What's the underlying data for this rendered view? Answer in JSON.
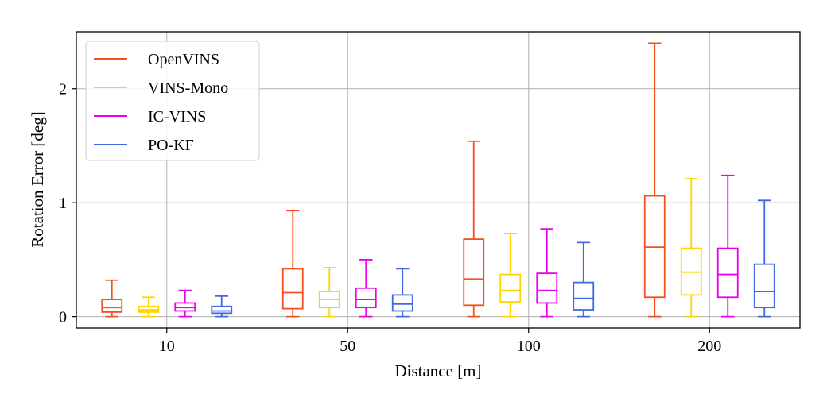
{
  "chart_data": {
    "type": "boxplot",
    "title": "",
    "xlabel": "Distance [m]",
    "ylabel": "Rotation Error [deg]",
    "categories": [
      "10",
      "50",
      "100",
      "200"
    ],
    "ylim": [
      -0.1,
      2.5
    ],
    "yticks": [
      0,
      1,
      2
    ],
    "grid": true,
    "legend_position": "top-left",
    "series": [
      {
        "name": "OpenVINS",
        "color": "#f4511e",
        "boxes": [
          {
            "min": 0.0,
            "q1": 0.04,
            "median": 0.08,
            "q3": 0.15,
            "max": 0.32
          },
          {
            "min": 0.0,
            "q1": 0.07,
            "median": 0.21,
            "q3": 0.42,
            "max": 0.93
          },
          {
            "min": 0.0,
            "q1": 0.1,
            "median": 0.33,
            "q3": 0.68,
            "max": 1.54
          },
          {
            "min": 0.0,
            "q1": 0.17,
            "median": 0.61,
            "q3": 1.06,
            "max": 2.4
          }
        ]
      },
      {
        "name": "VINS-Mono",
        "color": "#ffd500",
        "boxes": [
          {
            "min": 0.0,
            "q1": 0.04,
            "median": 0.06,
            "q3": 0.09,
            "max": 0.17
          },
          {
            "min": 0.0,
            "q1": 0.08,
            "median": 0.15,
            "q3": 0.22,
            "max": 0.43
          },
          {
            "min": 0.0,
            "q1": 0.13,
            "median": 0.23,
            "q3": 0.37,
            "max": 0.73
          },
          {
            "min": 0.0,
            "q1": 0.19,
            "median": 0.39,
            "q3": 0.6,
            "max": 1.21
          }
        ]
      },
      {
        "name": "IC-VINS",
        "color": "#ee00ee",
        "boxes": [
          {
            "min": 0.0,
            "q1": 0.05,
            "median": 0.08,
            "q3": 0.12,
            "max": 0.23
          },
          {
            "min": 0.0,
            "q1": 0.08,
            "median": 0.15,
            "q3": 0.25,
            "max": 0.5
          },
          {
            "min": 0.0,
            "q1": 0.12,
            "median": 0.23,
            "q3": 0.38,
            "max": 0.77
          },
          {
            "min": 0.0,
            "q1": 0.17,
            "median": 0.37,
            "q3": 0.6,
            "max": 1.24
          }
        ]
      },
      {
        "name": "PO-KF",
        "color": "#4169e1",
        "boxes": [
          {
            "min": 0.0,
            "q1": 0.03,
            "median": 0.05,
            "q3": 0.09,
            "max": 0.18
          },
          {
            "min": 0.0,
            "q1": 0.05,
            "median": 0.11,
            "q3": 0.19,
            "max": 0.42
          },
          {
            "min": 0.0,
            "q1": 0.06,
            "median": 0.16,
            "q3": 0.3,
            "max": 0.65
          },
          {
            "min": 0.0,
            "q1": 0.08,
            "median": 0.22,
            "q3": 0.46,
            "max": 1.02
          }
        ]
      }
    ]
  }
}
